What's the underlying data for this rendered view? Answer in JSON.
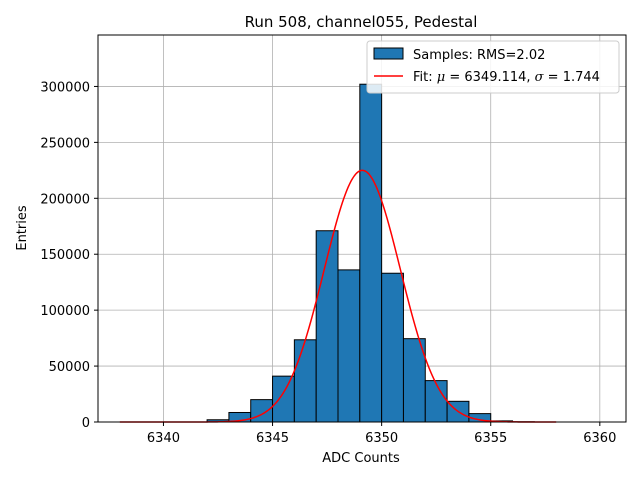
{
  "chart_data": {
    "type": "bar",
    "title": "Run 508, channel055, Pedestal",
    "xlabel": "ADC Counts",
    "ylabel": "Entries",
    "xlim": [
      6337,
      6361.2
    ],
    "ylim": [
      0,
      346000
    ],
    "xticks": [
      6340,
      6345,
      6350,
      6355,
      6360
    ],
    "yticks": [
      0,
      50000,
      100000,
      150000,
      200000,
      250000,
      300000
    ],
    "grid": true,
    "legend_position": "top-right",
    "bins": {
      "x": [
        6342,
        6343,
        6344,
        6345,
        6346,
        6347,
        6348,
        6349,
        6350,
        6351,
        6352,
        6353,
        6354,
        6355,
        6356
      ],
      "values": [
        2000,
        8500,
        20000,
        41000,
        73500,
        171000,
        136000,
        302000,
        133000,
        74500,
        37000,
        18500,
        7500,
        1000,
        200
      ],
      "width": 1,
      "color": "#1f77b4",
      "edgecolor": "#000000"
    },
    "fit": {
      "mu": 6349.114,
      "sigma": 1.744,
      "amplitude": 225000,
      "x_range": [
        6338,
        6358
      ],
      "color": "#ff0000"
    },
    "legend": [
      {
        "label": "Samples: RMS=2.02",
        "kind": "patch",
        "color": "#1f77b4"
      },
      {
        "label_prefix": "Fit: ",
        "mu_symbol": "μ",
        "mu_text": " = 6349.114, ",
        "sigma_symbol": "σ",
        "sigma_text": " = 1.744",
        "kind": "line",
        "color": "#ff0000"
      }
    ]
  }
}
